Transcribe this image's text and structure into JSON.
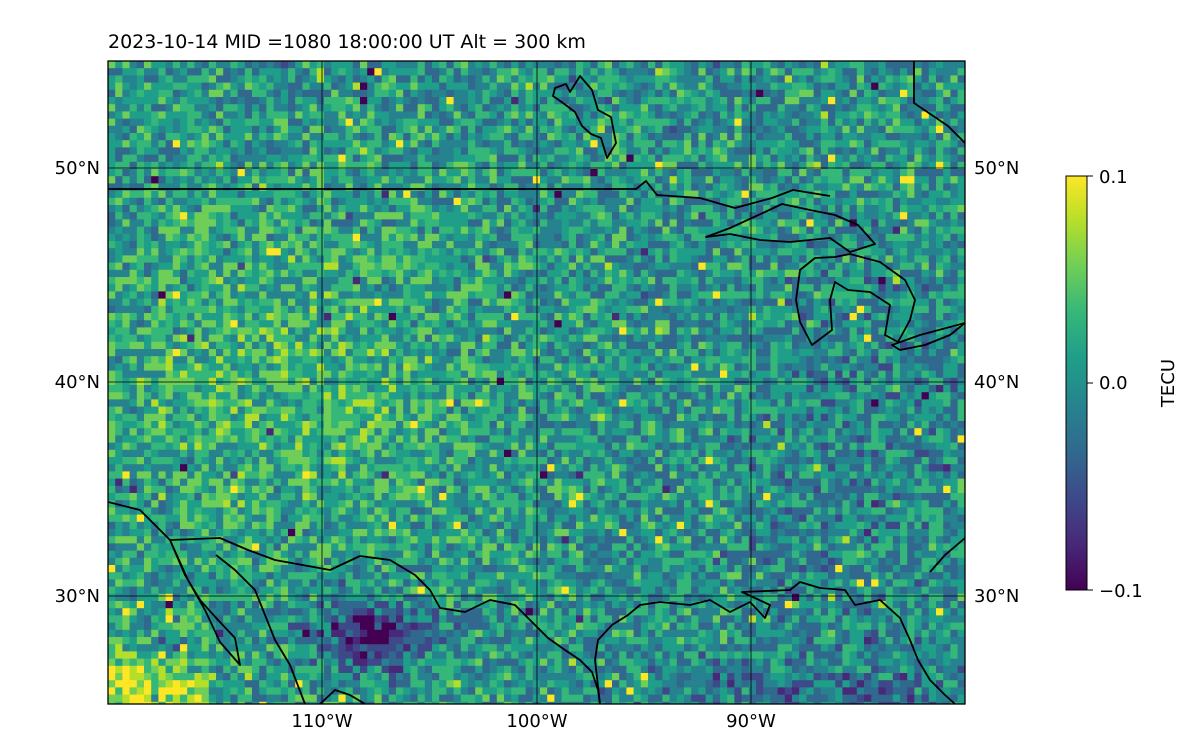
{
  "title": "2023-10-14  MID =1080    18:00:00  UT  Alt = 300 km",
  "chart_data": {
    "type": "heatmap",
    "title": "2023-10-14  MID =1080    18:00:00  UT  Alt = 300 km",
    "map_extent": {
      "lon": [
        -120,
        -80
      ],
      "lat": [
        25,
        55
      ]
    },
    "lat_ticks": [
      {
        "value": 30,
        "label": "30°N"
      },
      {
        "value": 40,
        "label": "40°N"
      },
      {
        "value": 50,
        "label": "50°N"
      }
    ],
    "lon_ticks": [
      {
        "value": -110,
        "label": "110°W"
      },
      {
        "value": -100,
        "label": "100°W"
      },
      {
        "value": -90,
        "label": "90°W"
      }
    ],
    "grid": true,
    "colorbar": {
      "label": "TECU",
      "colormap": "viridis",
      "range": [
        -0.1,
        0.1
      ],
      "ticks": [
        {
          "value": 0.1,
          "label": "0.1"
        },
        {
          "value": 0.0,
          "label": "0.0"
        },
        {
          "value": -0.1,
          "label": "−0.1"
        }
      ]
    }
  },
  "colors": {
    "viridis": [
      "#440154",
      "#482878",
      "#3e4989",
      "#31688e",
      "#26828e",
      "#1f9e89",
      "#35b779",
      "#6ece58",
      "#b5de2b",
      "#fde725"
    ],
    "coastline": "#000000",
    "gridline": "#000000"
  }
}
